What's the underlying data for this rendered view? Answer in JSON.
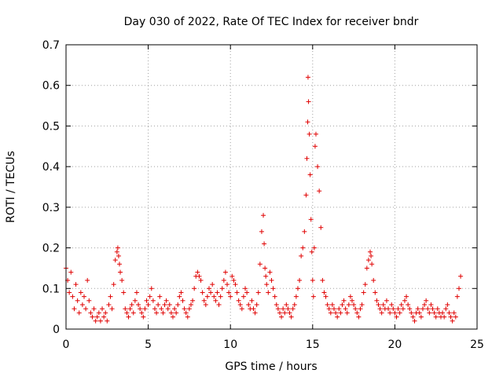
{
  "chart_data": {
    "type": "scatter",
    "title": "Day 030 of 2022, Rate Of TEC Index for receiver bndr",
    "xlabel": "GPS time / hours",
    "ylabel": "ROTI / TECUs",
    "xlim": [
      0,
      25
    ],
    "ylim": [
      0,
      0.7
    ],
    "xticks": [
      0,
      5,
      10,
      15,
      20,
      25
    ],
    "yticks": [
      0,
      0.1,
      0.2,
      0.3,
      0.4,
      0.5,
      0.6,
      0.7
    ],
    "xtick_labels": [
      "0",
      "5",
      "10",
      "15",
      "20",
      "25"
    ],
    "ytick_labels": [
      "0",
      "0.1",
      "0.2",
      "0.3",
      "0.4",
      "0.5",
      "0.6",
      "0.7"
    ],
    "grid": true,
    "marker": "+",
    "color": "#e00000",
    "series": [
      {
        "name": "ROTI",
        "x": [
          0.0,
          0.1,
          0.2,
          0.3,
          0.4,
          0.5,
          0.6,
          0.7,
          0.8,
          0.9,
          1.0,
          1.1,
          1.2,
          1.3,
          1.4,
          1.5,
          1.6,
          1.7,
          1.8,
          1.9,
          2.0,
          2.1,
          2.2,
          2.3,
          2.4,
          2.5,
          2.6,
          2.7,
          2.8,
          2.9,
          3.0,
          3.1,
          3.15,
          3.2,
          3.25,
          3.3,
          3.4,
          3.5,
          3.6,
          3.7,
          3.8,
          3.9,
          4.0,
          4.1,
          4.2,
          4.3,
          4.4,
          4.5,
          4.6,
          4.7,
          4.8,
          4.9,
          5.0,
          5.1,
          5.2,
          5.3,
          5.4,
          5.5,
          5.6,
          5.7,
          5.8,
          5.9,
          6.0,
          6.1,
          6.2,
          6.3,
          6.4,
          6.5,
          6.6,
          6.7,
          6.8,
          6.9,
          7.0,
          7.1,
          7.2,
          7.3,
          7.4,
          7.5,
          7.6,
          7.7,
          7.8,
          7.9,
          8.0,
          8.1,
          8.2,
          8.3,
          8.4,
          8.5,
          8.6,
          8.7,
          8.8,
          8.9,
          9.0,
          9.1,
          9.2,
          9.3,
          9.4,
          9.5,
          9.6,
          9.7,
          9.8,
          9.9,
          10.0,
          10.1,
          10.2,
          10.3,
          10.4,
          10.5,
          10.6,
          10.7,
          10.8,
          10.9,
          11.0,
          11.1,
          11.2,
          11.3,
          11.4,
          11.5,
          11.6,
          11.7,
          11.8,
          11.9,
          12.0,
          12.05,
          12.1,
          12.15,
          12.2,
          12.3,
          12.4,
          12.5,
          12.6,
          12.7,
          12.8,
          12.9,
          13.0,
          13.1,
          13.2,
          13.3,
          13.4,
          13.5,
          13.6,
          13.7,
          13.8,
          13.9,
          14.0,
          14.1,
          14.2,
          14.3,
          14.4,
          14.5,
          14.6,
          14.65,
          14.7,
          14.72,
          14.75,
          14.8,
          14.85,
          14.9,
          14.95,
          15.0,
          15.05,
          15.1,
          15.15,
          15.2,
          15.3,
          15.4,
          15.5,
          15.6,
          15.7,
          15.8,
          15.9,
          16.0,
          16.1,
          16.2,
          16.3,
          16.4,
          16.5,
          16.6,
          16.7,
          16.8,
          16.9,
          17.0,
          17.1,
          17.2,
          17.3,
          17.4,
          17.5,
          17.6,
          17.7,
          17.8,
          17.9,
          18.0,
          18.1,
          18.2,
          18.3,
          18.4,
          18.5,
          18.55,
          18.6,
          18.7,
          18.8,
          18.9,
          19.0,
          19.1,
          19.2,
          19.3,
          19.4,
          19.5,
          19.6,
          19.7,
          19.8,
          19.9,
          20.0,
          20.1,
          20.2,
          20.3,
          20.4,
          20.5,
          20.6,
          20.7,
          20.8,
          20.9,
          21.0,
          21.1,
          21.2,
          21.3,
          21.4,
          21.5,
          21.6,
          21.7,
          21.8,
          21.9,
          22.0,
          22.1,
          22.2,
          22.3,
          22.4,
          22.5,
          22.6,
          22.7,
          22.8,
          22.9,
          23.0,
          23.1,
          23.2,
          23.3,
          23.4,
          23.5,
          23.6,
          23.7,
          23.8,
          23.9,
          24.0
        ],
        "y": [
          0.15,
          0.12,
          0.09,
          0.14,
          0.08,
          0.05,
          0.11,
          0.07,
          0.04,
          0.09,
          0.06,
          0.08,
          0.05,
          0.12,
          0.07,
          0.04,
          0.03,
          0.05,
          0.02,
          0.03,
          0.04,
          0.02,
          0.05,
          0.03,
          0.04,
          0.02,
          0.06,
          0.08,
          0.05,
          0.11,
          0.17,
          0.19,
          0.2,
          0.18,
          0.16,
          0.14,
          0.12,
          0.09,
          0.05,
          0.04,
          0.03,
          0.05,
          0.06,
          0.04,
          0.07,
          0.09,
          0.06,
          0.05,
          0.04,
          0.03,
          0.05,
          0.07,
          0.06,
          0.08,
          0.1,
          0.07,
          0.05,
          0.04,
          0.06,
          0.08,
          0.05,
          0.04,
          0.06,
          0.07,
          0.05,
          0.06,
          0.04,
          0.03,
          0.05,
          0.04,
          0.06,
          0.08,
          0.09,
          0.07,
          0.05,
          0.04,
          0.03,
          0.05,
          0.06,
          0.07,
          0.1,
          0.13,
          0.14,
          0.13,
          0.12,
          0.09,
          0.07,
          0.06,
          0.08,
          0.1,
          0.09,
          0.11,
          0.08,
          0.07,
          0.09,
          0.06,
          0.08,
          0.1,
          0.12,
          0.14,
          0.11,
          0.09,
          0.08,
          0.13,
          0.12,
          0.11,
          0.09,
          0.07,
          0.06,
          0.05,
          0.08,
          0.1,
          0.09,
          0.06,
          0.05,
          0.07,
          0.05,
          0.04,
          0.06,
          0.09,
          0.16,
          0.24,
          0.28,
          0.21,
          0.15,
          0.13,
          0.11,
          0.09,
          0.14,
          0.12,
          0.1,
          0.08,
          0.06,
          0.05,
          0.04,
          0.03,
          0.05,
          0.04,
          0.06,
          0.05,
          0.04,
          0.03,
          0.05,
          0.06,
          0.08,
          0.1,
          0.12,
          0.18,
          0.2,
          0.24,
          0.33,
          0.42,
          0.51,
          0.62,
          0.56,
          0.48,
          0.38,
          0.27,
          0.19,
          0.12,
          0.08,
          0.2,
          0.45,
          0.48,
          0.4,
          0.34,
          0.25,
          0.12,
          0.09,
          0.08,
          0.06,
          0.05,
          0.04,
          0.06,
          0.05,
          0.04,
          0.03,
          0.05,
          0.04,
          0.06,
          0.07,
          0.05,
          0.04,
          0.06,
          0.08,
          0.07,
          0.06,
          0.05,
          0.04,
          0.03,
          0.05,
          0.06,
          0.09,
          0.11,
          0.15,
          0.17,
          0.19,
          0.18,
          0.16,
          0.12,
          0.09,
          0.07,
          0.06,
          0.05,
          0.04,
          0.06,
          0.05,
          0.07,
          0.05,
          0.04,
          0.06,
          0.05,
          0.04,
          0.03,
          0.05,
          0.04,
          0.06,
          0.05,
          0.07,
          0.08,
          0.06,
          0.05,
          0.04,
          0.03,
          0.02,
          0.04,
          0.05,
          0.04,
          0.03,
          0.05,
          0.06,
          0.07,
          0.05,
          0.04,
          0.06,
          0.05,
          0.04,
          0.03,
          0.05,
          0.04,
          0.03,
          0.04,
          0.03,
          0.05,
          0.06,
          0.04,
          0.03,
          0.02,
          0.04,
          0.03,
          0.08,
          0.1,
          0.13
        ]
      }
    ]
  }
}
